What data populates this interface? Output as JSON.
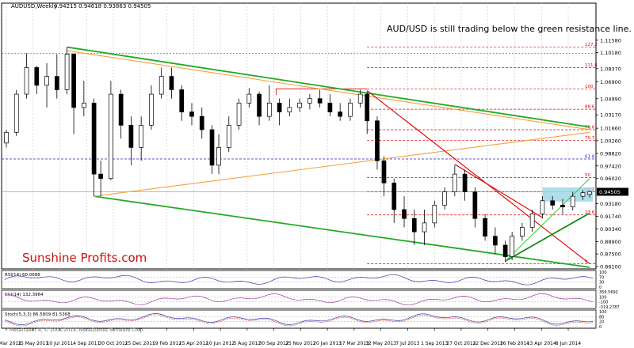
{
  "chart_data": {
    "type": "candlestick",
    "title": "AUDUSD,Weekly",
    "ohlc_header": "0.94215 0.94618 0.93863 0.94505",
    "annotation": "AUD/USD is still trading below the green resistance line.",
    "watermark": "Sunshine Profits.com",
    "current_price": "0.94505",
    "price_axis": {
      "ylim": [
        0.8582,
        1.1575
      ],
      "ticks": [
        "1.11580",
        "1.10180",
        "1.08370",
        "1.06900",
        "1.04990",
        "1.03170",
        "1.01660",
        "1.00260",
        "0.98820",
        "0.97420",
        "0.96020",
        "0.94505",
        "0.93180",
        "0.91740",
        "0.90340",
        "0.88900",
        "0.87500",
        "0.86100"
      ]
    },
    "x_axis": {
      "start": "2011-03-20",
      "end": "2014-07-13",
      "labels": [
        "20 Mar 2011",
        "15 May 2011",
        "10 Jul 2011",
        "4 Sep 2011",
        "30 Oct 2011",
        "25 Dec 2011",
        "19 Feb 2012",
        "15 Apr 2012",
        "10 Jun 2012",
        "5 Aug 2012",
        "30 Sep 2012",
        "25 Nov 2012",
        "20 Jan 2013",
        "17 Mar 2013",
        "12 May 2013",
        "7 Jul 2013",
        "1 Sep 2013",
        "27 Oct 2013",
        "22 Dec 2013",
        "16 Feb 2014",
        "13 Apr 2014",
        "8 Jun 2014"
      ]
    },
    "candles": [
      {
        "d": "2011-03-20",
        "o": 1.0,
        "h": 1.015,
        "l": 0.995,
        "c": 1.012
      },
      {
        "d": "2011-04-10",
        "o": 1.012,
        "h": 1.06,
        "l": 1.008,
        "c": 1.055
      },
      {
        "d": "2011-05-01",
        "o": 1.055,
        "h": 1.101,
        "l": 1.05,
        "c": 1.085
      },
      {
        "d": "2011-05-22",
        "o": 1.085,
        "h": 1.087,
        "l": 1.055,
        "c": 1.065
      },
      {
        "d": "2011-06-12",
        "o": 1.065,
        "h": 1.09,
        "l": 1.04,
        "c": 1.075
      },
      {
        "d": "2011-07-03",
        "o": 1.075,
        "h": 1.1,
        "l": 1.05,
        "c": 1.06
      },
      {
        "d": "2011-07-24",
        "o": 1.06,
        "h": 1.108,
        "l": 1.055,
        "c": 1.1
      },
      {
        "d": "2011-08-07",
        "o": 1.1,
        "h": 1.101,
        "l": 1.01,
        "c": 1.04
      },
      {
        "d": "2011-08-28",
        "o": 1.04,
        "h": 1.07,
        "l": 1.03,
        "c": 1.045
      },
      {
        "d": "2011-09-18",
        "o": 1.045,
        "h": 1.05,
        "l": 0.94,
        "c": 0.965
      },
      {
        "d": "2011-10-02",
        "o": 0.965,
        "h": 0.98,
        "l": 0.94,
        "c": 0.96
      },
      {
        "d": "2011-10-23",
        "o": 0.96,
        "h": 1.07,
        "l": 0.958,
        "c": 1.055
      },
      {
        "d": "2011-11-13",
        "o": 1.055,
        "h": 1.06,
        "l": 1.005,
        "c": 1.02
      },
      {
        "d": "2011-12-04",
        "o": 1.02,
        "h": 1.03,
        "l": 0.975,
        "c": 0.995
      },
      {
        "d": "2011-12-25",
        "o": 0.995,
        "h": 1.03,
        "l": 0.98,
        "c": 1.02
      },
      {
        "d": "2012-01-15",
        "o": 1.02,
        "h": 1.065,
        "l": 1.015,
        "c": 1.055
      },
      {
        "d": "2012-02-05",
        "o": 1.055,
        "h": 1.085,
        "l": 1.05,
        "c": 1.075
      },
      {
        "d": "2012-02-26",
        "o": 1.075,
        "h": 1.085,
        "l": 1.05,
        "c": 1.06
      },
      {
        "d": "2012-03-18",
        "o": 1.06,
        "h": 1.065,
        "l": 1.025,
        "c": 1.035
      },
      {
        "d": "2012-04-08",
        "o": 1.035,
        "h": 1.045,
        "l": 1.02,
        "c": 1.03
      },
      {
        "d": "2012-04-29",
        "o": 1.03,
        "h": 1.04,
        "l": 1.005,
        "c": 1.015
      },
      {
        "d": "2012-05-20",
        "o": 1.015,
        "h": 1.02,
        "l": 0.965,
        "c": 0.975
      },
      {
        "d": "2012-06-03",
        "o": 0.975,
        "h": 1.01,
        "l": 0.965,
        "c": 0.995
      },
      {
        "d": "2012-06-24",
        "o": 0.995,
        "h": 1.03,
        "l": 0.99,
        "c": 1.02
      },
      {
        "d": "2012-07-15",
        "o": 1.02,
        "h": 1.05,
        "l": 1.015,
        "c": 1.045
      },
      {
        "d": "2012-08-05",
        "o": 1.045,
        "h": 1.062,
        "l": 1.04,
        "c": 1.055
      },
      {
        "d": "2012-08-26",
        "o": 1.055,
        "h": 1.058,
        "l": 1.02,
        "c": 1.03
      },
      {
        "d": "2012-09-16",
        "o": 1.03,
        "h": 1.065,
        "l": 1.025,
        "c": 1.045
      },
      {
        "d": "2012-10-07",
        "o": 1.045,
        "h": 1.05,
        "l": 1.02,
        "c": 1.035
      },
      {
        "d": "2012-10-28",
        "o": 1.035,
        "h": 1.05,
        "l": 1.03,
        "c": 1.04
      },
      {
        "d": "2012-11-18",
        "o": 1.04,
        "h": 1.05,
        "l": 1.035,
        "c": 1.045
      },
      {
        "d": "2012-12-09",
        "o": 1.045,
        "h": 1.055,
        "l": 1.038,
        "c": 1.05
      },
      {
        "d": "2012-12-30",
        "o": 1.05,
        "h": 1.06,
        "l": 1.04,
        "c": 1.045
      },
      {
        "d": "2013-01-20",
        "o": 1.045,
        "h": 1.055,
        "l": 1.03,
        "c": 1.035
      },
      {
        "d": "2013-02-10",
        "o": 1.035,
        "h": 1.045,
        "l": 1.025,
        "c": 1.03
      },
      {
        "d": "2013-03-03",
        "o": 1.03,
        "h": 1.05,
        "l": 1.025,
        "c": 1.045
      },
      {
        "d": "2013-03-24",
        "o": 1.045,
        "h": 1.06,
        "l": 1.04,
        "c": 1.055
      },
      {
        "d": "2013-04-07",
        "o": 1.055,
        "h": 1.058,
        "l": 1.01,
        "c": 1.025
      },
      {
        "d": "2013-04-28",
        "o": 1.025,
        "h": 1.03,
        "l": 0.97,
        "c": 0.98
      },
      {
        "d": "2013-05-12",
        "o": 0.98,
        "h": 0.985,
        "l": 0.94,
        "c": 0.955
      },
      {
        "d": "2013-06-02",
        "o": 0.955,
        "h": 0.96,
        "l": 0.91,
        "c": 0.925
      },
      {
        "d": "2013-06-23",
        "o": 0.925,
        "h": 0.94,
        "l": 0.905,
        "c": 0.915
      },
      {
        "d": "2013-07-14",
        "o": 0.915,
        "h": 0.925,
        "l": 0.885,
        "c": 0.9
      },
      {
        "d": "2013-08-04",
        "o": 0.9,
        "h": 0.925,
        "l": 0.885,
        "c": 0.91
      },
      {
        "d": "2013-08-25",
        "o": 0.91,
        "h": 0.935,
        "l": 0.905,
        "c": 0.93
      },
      {
        "d": "2013-09-15",
        "o": 0.93,
        "h": 0.95,
        "l": 0.925,
        "c": 0.945
      },
      {
        "d": "2013-10-06",
        "o": 0.945,
        "h": 0.975,
        "l": 0.94,
        "c": 0.965
      },
      {
        "d": "2013-10-27",
        "o": 0.965,
        "h": 0.97,
        "l": 0.935,
        "c": 0.945
      },
      {
        "d": "2013-11-17",
        "o": 0.945,
        "h": 0.95,
        "l": 0.905,
        "c": 0.915
      },
      {
        "d": "2013-12-08",
        "o": 0.915,
        "h": 0.92,
        "l": 0.89,
        "c": 0.895
      },
      {
        "d": "2013-12-29",
        "o": 0.895,
        "h": 0.905,
        "l": 0.875,
        "c": 0.885
      },
      {
        "d": "2014-01-19",
        "o": 0.885,
        "h": 0.89,
        "l": 0.866,
        "c": 0.872
      },
      {
        "d": "2014-02-02",
        "o": 0.872,
        "h": 0.9,
        "l": 0.868,
        "c": 0.895
      },
      {
        "d": "2014-02-23",
        "o": 0.895,
        "h": 0.91,
        "l": 0.89,
        "c": 0.905
      },
      {
        "d": "2014-03-16",
        "o": 0.905,
        "h": 0.925,
        "l": 0.9,
        "c": 0.92
      },
      {
        "d": "2014-04-06",
        "o": 0.92,
        "h": 0.94,
        "l": 0.915,
        "c": 0.935
      },
      {
        "d": "2014-04-27",
        "o": 0.935,
        "h": 0.94,
        "l": 0.925,
        "c": 0.93
      },
      {
        "d": "2014-05-18",
        "o": 0.93,
        "h": 0.937,
        "l": 0.92,
        "c": 0.928
      },
      {
        "d": "2014-06-08",
        "o": 0.928,
        "h": 0.945,
        "l": 0.924,
        "c": 0.94
      },
      {
        "d": "2014-06-29",
        "o": 0.94,
        "h": 0.947,
        "l": 0.936,
        "c": 0.944
      },
      {
        "d": "2014-07-13",
        "o": 0.94215,
        "h": 0.94618,
        "l": 0.93863,
        "c": 0.94505
      }
    ],
    "lines": [
      {
        "name": "green-upper-resistance",
        "color": "#22aa22",
        "d1": "2011-07-24",
        "p1": 1.108,
        "d2": "2014-07-13",
        "p2": 1.018
      },
      {
        "name": "green-lower-support",
        "color": "#22aa22",
        "d1": "2011-09-18",
        "p1": 0.94,
        "d2": "2014-07-13",
        "p2": 0.86
      },
      {
        "name": "orange-upper",
        "color": "#f5a040",
        "d1": "2011-07-24",
        "p1": 1.104,
        "d2": "2014-07-13",
        "p2": 1.015
      },
      {
        "name": "orange-lower",
        "color": "#f5a040",
        "d1": "2011-09-18",
        "p1": 0.94,
        "d2": "2014-07-13",
        "p2": 1.012
      },
      {
        "name": "red-declining",
        "color": "#dd0000",
        "d1": "2013-04-07",
        "p1": 1.059,
        "d2": "2014-07-13",
        "p2": 0.864
      },
      {
        "name": "red-short",
        "color": "#dd0000",
        "d1": "2013-10-06",
        "p1": 0.976,
        "d2": "2014-04-06",
        "p2": 0.916
      },
      {
        "name": "green-support-rising",
        "color": "#118811",
        "d1": "2014-01-19",
        "p1": 0.867,
        "d2": "2014-07-13",
        "p2": 0.921
      },
      {
        "name": "green-channel-thin",
        "color": "#44cc44",
        "d1": "2014-01-19",
        "p1": 0.867,
        "d2": "2014-07-13",
        "p2": 0.96
      }
    ],
    "levels": [
      {
        "value": 1.108,
        "label": "127.2",
        "color": "#dd0000"
      },
      {
        "value": 1.085,
        "label": "111.8",
        "color": "#dd0000"
      },
      {
        "value": 1.061,
        "label": "100",
        "color": "#dd0000"
      },
      {
        "value": 1.038,
        "label": "88.6",
        "color": "#dd0000"
      },
      {
        "value": 1.015,
        "label": "78.6",
        "color": "#dd0000"
      },
      {
        "value": 1.003,
        "label": "70.7",
        "color": "#dd0000"
      },
      {
        "value": 0.982,
        "label": "61.8",
        "color": "#2222cc"
      },
      {
        "value": 0.961,
        "label": "50",
        "color": "#dd0000"
      },
      {
        "value": 0.945,
        "label": "38.2",
        "color": "#dd0000"
      },
      {
        "value": 0.919,
        "label": "23.6",
        "color": "#dd0000"
      },
      {
        "value": 0.864,
        "label": "0",
        "color": "#dd0000"
      }
    ],
    "resistance_zone": {
      "d1": "2014-04-06",
      "d2": "2014-07-13",
      "top": 0.95,
      "bottom": 0.934,
      "color": "#9fd8e6"
    },
    "indicators": [
      {
        "label": "RSI(14) 60.0688",
        "scale": [
          "100",
          "70",
          "30",
          "0"
        ],
        "color": "#3b3baa"
      },
      {
        "label": "CCI(14) 132.3964",
        "scale": [
          "356.5692",
          "100",
          "-100",
          "-319.2787"
        ],
        "color": "#9b3b9b"
      },
      {
        "label": "Stoch(5,3,3) 86.5809 81.5368",
        "scale": [
          "100",
          "80",
          "20",
          "0"
        ],
        "color": "#3b3baa"
      }
    ],
    "copyright": "MetaTrader 4, © 2001-2014, MetaQuotes Software Corp."
  }
}
